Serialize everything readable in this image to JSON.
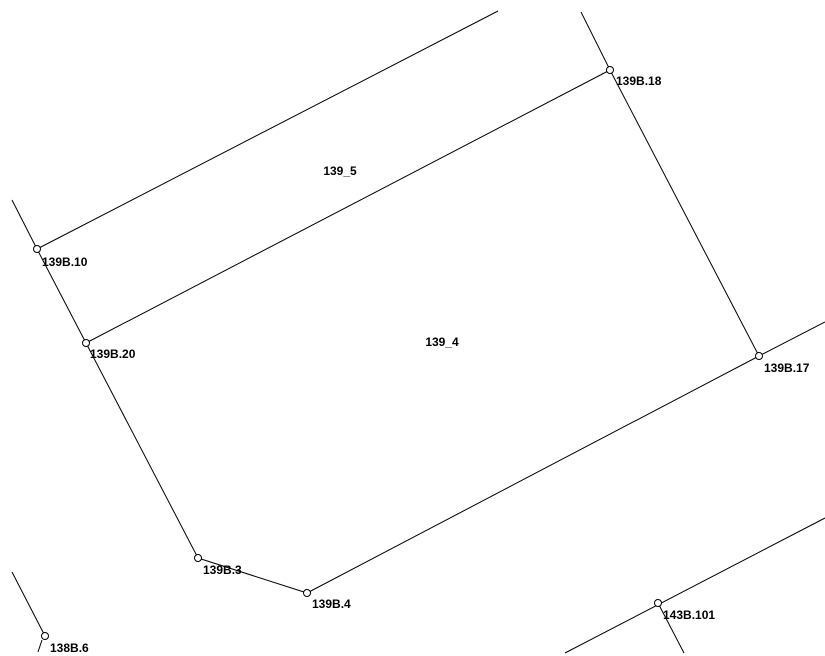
{
  "map": {
    "background": "#ffffff",
    "line_color": "#000000",
    "parcels": {
      "p1": "139_5",
      "p2": "139_4"
    },
    "points": {
      "a": "139B.18",
      "b": "139B.10",
      "c": "139B.20",
      "d": "139B.17",
      "e": "139B.3",
      "f": "139B.4",
      "g": "143B.101",
      "h": "138B.6"
    }
  }
}
